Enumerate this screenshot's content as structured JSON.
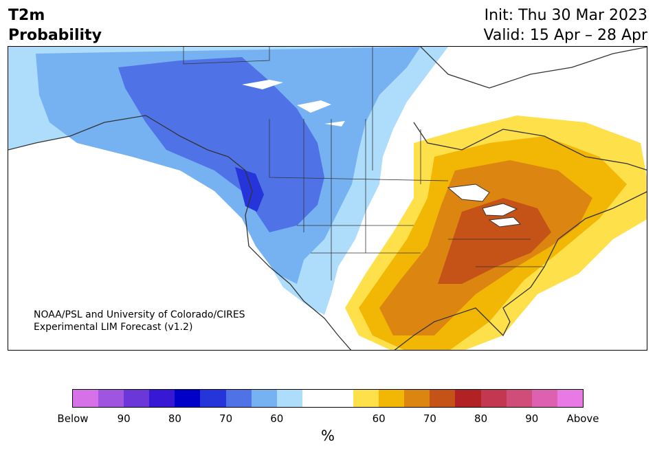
{
  "header": {
    "title_line1": "T2m",
    "title_line2": "Probability",
    "init": "Init: Thu 30 Mar 2023",
    "valid": "Valid: 15 Apr – 28 Apr"
  },
  "map": {
    "credit_line1": "NOAA/PSL and University of Colorado/CIRES",
    "credit_line2": "Experimental LIM Forecast (v1.2)"
  },
  "colorbar": {
    "colors": [
      "#d771e8",
      "#9f55e0",
      "#6c37d8",
      "#3718d4",
      "#0000c8",
      "#2535d9",
      "#4f73e7",
      "#76b1f2",
      "#aedcfb",
      "#ffffff",
      "#ffffff",
      "#fde04a",
      "#f2b705",
      "#dc8510",
      "#c55317",
      "#b22124",
      "#c33750",
      "#d04d79",
      "#dd61b0",
      "#e97ae5"
    ],
    "tick_labels": [
      "Below",
      "90",
      "80",
      "70",
      "60",
      "60",
      "70",
      "80",
      "90",
      "Above"
    ],
    "unit": "%"
  }
}
